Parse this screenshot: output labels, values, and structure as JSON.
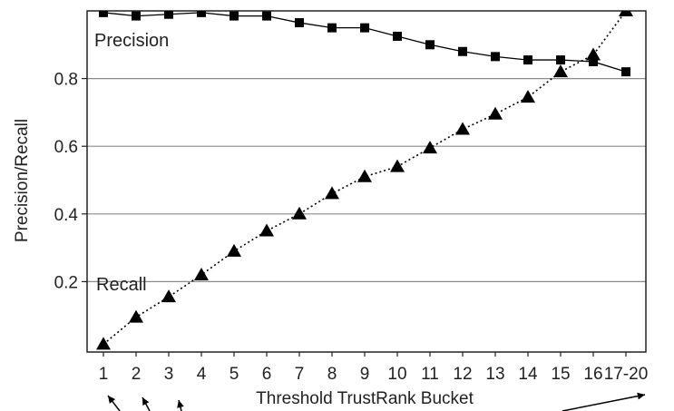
{
  "chart_data": {
    "type": "line",
    "categories": [
      "1",
      "2",
      "3",
      "4",
      "5",
      "6",
      "7",
      "8",
      "9",
      "10",
      "11",
      "12",
      "13",
      "14",
      "15",
      "16",
      "17-20"
    ],
    "title": "",
    "xlabel": "Threshold TrustRank Bucket",
    "ylabel": "Precision/Recall",
    "ylim": [
      0,
      1.0
    ],
    "yticks": [
      0.2,
      0.4,
      0.6,
      0.8
    ],
    "ytick_labels": [
      "0.2",
      "0.4",
      "0.6",
      "0.8"
    ],
    "grid": "horizontal",
    "series": [
      {
        "name": "Precision",
        "marker": "square",
        "line_style": "solid",
        "values": [
          0.995,
          0.985,
          0.99,
          0.995,
          0.985,
          0.985,
          0.965,
          0.95,
          0.95,
          0.925,
          0.9,
          0.88,
          0.865,
          0.855,
          0.855,
          0.85,
          0.82
        ]
      },
      {
        "name": "Recall",
        "marker": "triangle",
        "line_style": "dotted",
        "values": [
          0.015,
          0.095,
          0.155,
          0.22,
          0.29,
          0.35,
          0.4,
          0.46,
          0.51,
          0.54,
          0.595,
          0.65,
          0.695,
          0.745,
          0.82,
          0.87,
          1.0
        ]
      }
    ],
    "annotations": [
      {
        "type": "arrow",
        "target": "1"
      },
      {
        "type": "arrow",
        "target": "2"
      },
      {
        "type": "arrow",
        "target": "3"
      },
      {
        "type": "arrow",
        "target": "17-20"
      }
    ]
  },
  "colors": {
    "series": "#000000",
    "grid": "#8c8c8c",
    "axis": "#222222"
  }
}
